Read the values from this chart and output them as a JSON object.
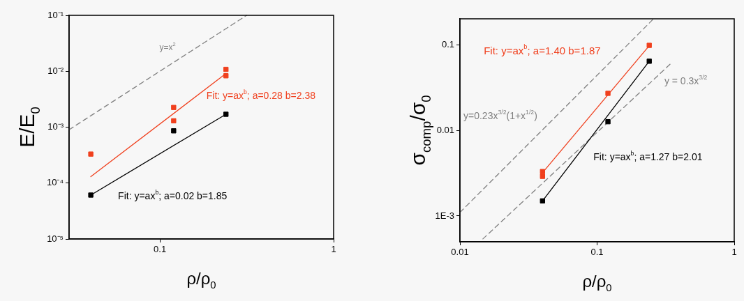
{
  "chart_data": [
    {
      "type": "scatter",
      "xlabel": "ρ/ρ$_{0}$",
      "ylabel": "E/E$_{0}$",
      "log": "xy",
      "grid": false,
      "legend": false,
      "marker": "square",
      "xlim": [
        0.03,
        1
      ],
      "xticks": [
        0.1,
        1
      ],
      "ylim": [
        1e-05,
        0.1
      ],
      "yticks": [
        {
          "value": 1e-05,
          "label": "10⁻⁵"
        },
        {
          "value": 0.0001,
          "label": "10⁻⁴"
        },
        {
          "value": 0.001,
          "label": "10⁻³"
        },
        {
          "value": 0.01,
          "label": "10⁻²"
        },
        {
          "value": 0.1,
          "label": "10⁻¹"
        }
      ],
      "series": [
        {
          "type": "scatter",
          "color": "#f0401e",
          "x": [
            0.04,
            0.12,
            0.12,
            0.24,
            0.24
          ],
          "values": [
            0.00033,
            0.00225,
            0.0013,
            0.0108,
            0.0083
          ]
        },
        {
          "type": "scatter",
          "color": "#000000",
          "x": [
            0.04,
            0.12,
            0.24
          ],
          "values": [
            6.1e-05,
            0.00086,
            0.0017
          ]
        },
        {
          "type": "line",
          "name": "Fit: y=ax$^{b}$; a=0.28 b=2.38",
          "color": "#f0401e",
          "marker": "none",
          "x": [
            0.04,
            0.24
          ],
          "values": [
            0.00013,
            0.0091
          ]
        },
        {
          "type": "line",
          "name": "Fit: y=ax$^{b}$; a=0.02 b=1.85",
          "color": "#000000",
          "marker": "none",
          "x": [
            0.04,
            0.24
          ],
          "values": [
            6.1e-05,
            0.0017
          ]
        },
        {
          "type": "line",
          "name": "y=x$^{2}$",
          "color": "#808080",
          "marker": "none",
          "line_style": "dashed",
          "x": [
            0.03,
            0.316
          ],
          "values": [
            0.0009,
            0.1
          ]
        }
      ]
    },
    {
      "type": "scatter",
      "xlabel": "ρ/ρ$_{0}$",
      "ylabel": "σ$_{comp}$/σ$_{0}$",
      "log": "xy",
      "grid": false,
      "legend": false,
      "marker": "square",
      "xlim": [
        0.01,
        1
      ],
      "xticks": [
        0.01,
        0.1,
        1
      ],
      "ylim": [
        0.0005,
        0.2
      ],
      "yticks": [
        {
          "value": 0.001,
          "label": "1E-3"
        },
        0.01,
        0.1
      ],
      "series": [
        {
          "type": "scatter",
          "color": "#f0401e",
          "x": [
            0.04,
            0.04,
            0.12,
            0.24
          ],
          "values": [
            0.0033,
            0.0029,
            0.027,
            0.098
          ]
        },
        {
          "type": "scatter",
          "color": "#000000",
          "x": [
            0.04,
            0.12,
            0.24
          ],
          "values": [
            0.0015,
            0.0126,
            0.064
          ]
        },
        {
          "type": "line",
          "name": "Fit: y=ax$^{b}$; a=1.40 b=1.87",
          "color": "#f0401e",
          "marker": "none",
          "x": [
            0.04,
            0.24
          ],
          "values": [
            0.0032,
            0.097
          ]
        },
        {
          "type": "line",
          "name": "Fit: y=ax$^{b}$; a=1.27 b=2.01",
          "color": "#000000",
          "marker": "none",
          "x": [
            0.04,
            0.24
          ],
          "values": [
            0.0015,
            0.064
          ]
        },
        {
          "type": "line",
          "name": "y=0.23x$^{3/2}$(1+x$^{1/2}$)",
          "color": "#808080",
          "marker": "none",
          "line_style": "dashed",
          "x": [
            0.01,
            0.258
          ],
          "values": [
            0.0011,
            0.2
          ]
        },
        {
          "type": "line",
          "name": "y = 0.3x$^{3/2}$",
          "color": "#808080",
          "marker": "none",
          "line_style": "dashed",
          "x": [
            0.0147,
            0.352
          ],
          "values": [
            0.00054,
            0.062
          ]
        }
      ]
    }
  ]
}
